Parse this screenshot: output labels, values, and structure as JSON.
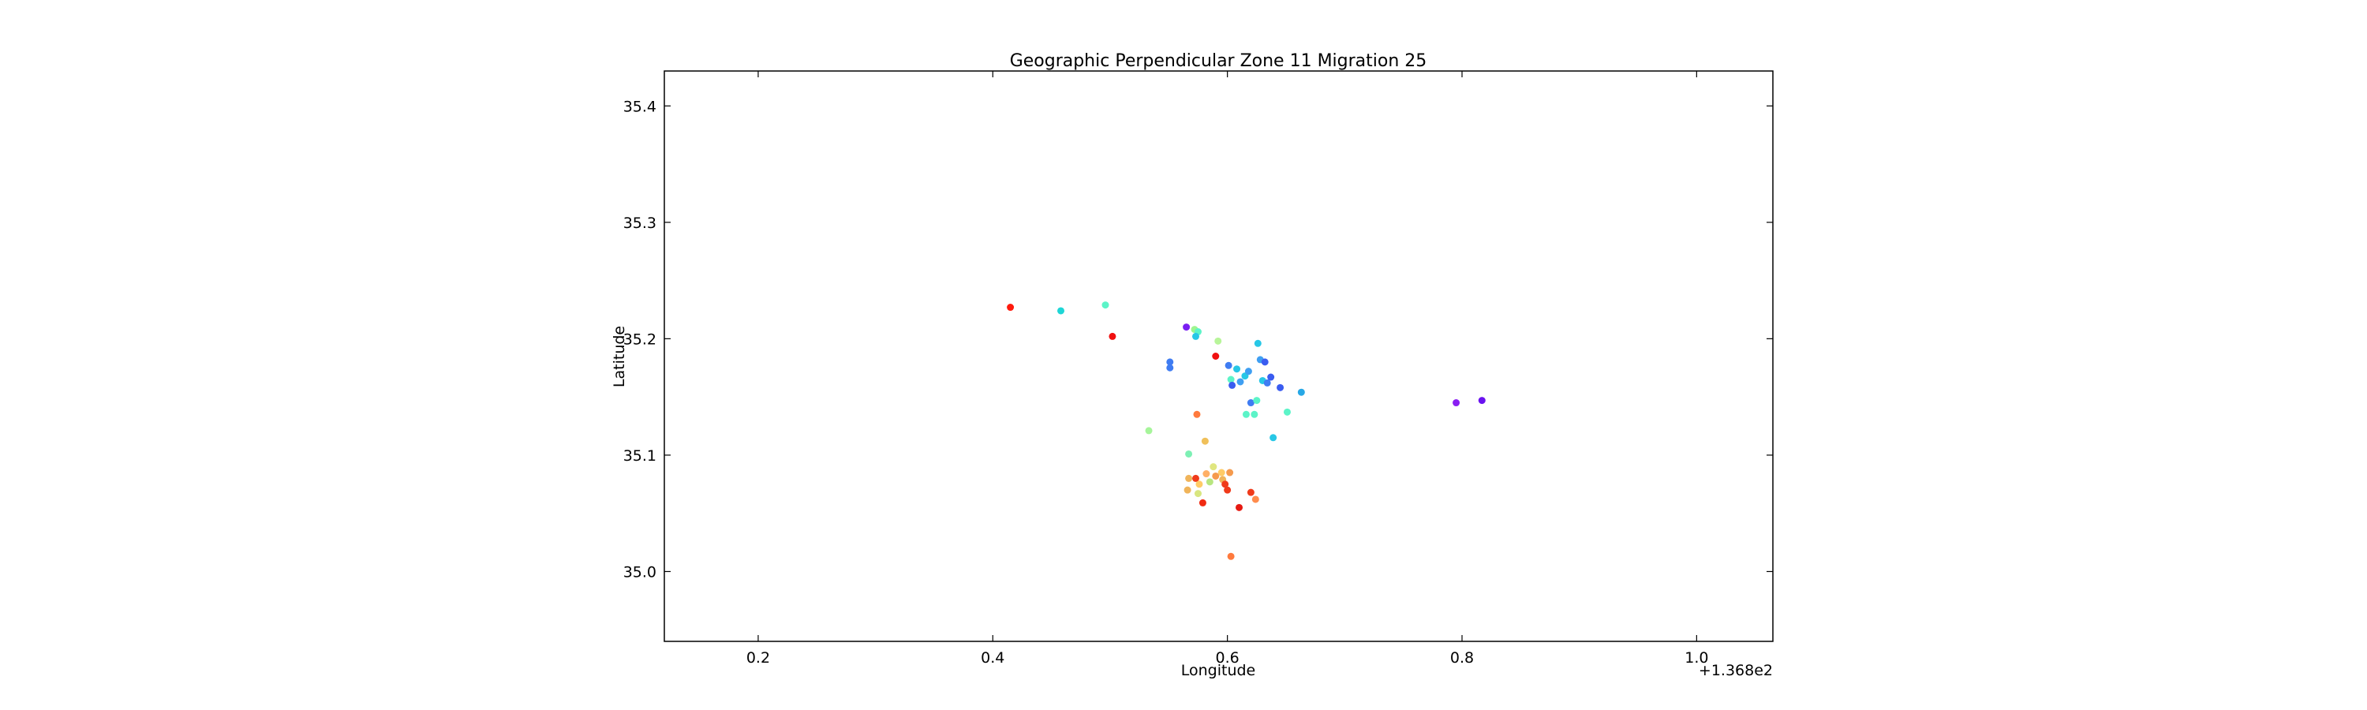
{
  "chart_data": {
    "type": "scatter",
    "title": "Geographic Perpendicular Zone 11 Migration 25",
    "xlabel": "Longitude",
    "ylabel": "Latitude",
    "x_offset_label": "+1.368e2",
    "xlim": [
      0.12,
      1.065
    ],
    "ylim": [
      34.94,
      35.43
    ],
    "xticks": [
      0.2,
      0.4,
      0.6,
      0.8,
      1.0
    ],
    "xtick_labels": [
      "0.2",
      "0.4",
      "0.6",
      "0.8",
      "1.0"
    ],
    "yticks": [
      35.0,
      35.1,
      35.2,
      35.3,
      35.4
    ],
    "ytick_labels": [
      "35.0",
      "35.1",
      "35.2",
      "35.3",
      "35.4"
    ],
    "grid": false,
    "colormap": "rainbow",
    "points": [
      {
        "x": 0.415,
        "y": 35.227,
        "color": "#ff1a0d"
      },
      {
        "x": 0.458,
        "y": 35.224,
        "color": "#1ed6d6"
      },
      {
        "x": 0.496,
        "y": 35.229,
        "color": "#5cf4c8"
      },
      {
        "x": 0.502,
        "y": 35.202,
        "color": "#f01010"
      },
      {
        "x": 0.533,
        "y": 35.121,
        "color": "#a6f59a"
      },
      {
        "x": 0.551,
        "y": 35.18,
        "color": "#3f7cf2"
      },
      {
        "x": 0.551,
        "y": 35.175,
        "color": "#3f7cf2"
      },
      {
        "x": 0.565,
        "y": 35.21,
        "color": "#7a1ef2"
      },
      {
        "x": 0.567,
        "y": 35.101,
        "color": "#7df0b4"
      },
      {
        "x": 0.567,
        "y": 35.08,
        "color": "#f0b45a"
      },
      {
        "x": 0.566,
        "y": 35.07,
        "color": "#f0b45a"
      },
      {
        "x": 0.572,
        "y": 35.208,
        "color": "#9ef58f"
      },
      {
        "x": 0.575,
        "y": 35.206,
        "color": "#5cf4c8"
      },
      {
        "x": 0.573,
        "y": 35.202,
        "color": "#27c7e6"
      },
      {
        "x": 0.574,
        "y": 35.135,
        "color": "#ff7a3d"
      },
      {
        "x": 0.573,
        "y": 35.08,
        "color": "#f03a1a"
      },
      {
        "x": 0.576,
        "y": 35.075,
        "color": "#ffcb66"
      },
      {
        "x": 0.575,
        "y": 35.067,
        "color": "#d8e680"
      },
      {
        "x": 0.579,
        "y": 35.059,
        "color": "#f02a12"
      },
      {
        "x": 0.581,
        "y": 35.112,
        "color": "#f0c05a"
      },
      {
        "x": 0.582,
        "y": 35.084,
        "color": "#ffb066"
      },
      {
        "x": 0.585,
        "y": 35.077,
        "color": "#b8e680"
      },
      {
        "x": 0.588,
        "y": 35.09,
        "color": "#e0e680"
      },
      {
        "x": 0.59,
        "y": 35.082,
        "color": "#f59a4d"
      },
      {
        "x": 0.59,
        "y": 35.185,
        "color": "#f01010"
      },
      {
        "x": 0.592,
        "y": 35.198,
        "color": "#b8f59a"
      },
      {
        "x": 0.595,
        "y": 35.085,
        "color": "#ffcb66"
      },
      {
        "x": 0.596,
        "y": 35.079,
        "color": "#f0b45a"
      },
      {
        "x": 0.598,
        "y": 35.075,
        "color": "#f03a1a"
      },
      {
        "x": 0.6,
        "y": 35.07,
        "color": "#f03a1a"
      },
      {
        "x": 0.602,
        "y": 35.085,
        "color": "#f59a4d"
      },
      {
        "x": 0.601,
        "y": 35.177,
        "color": "#3f7cf2"
      },
      {
        "x": 0.603,
        "y": 35.165,
        "color": "#5cf4c8"
      },
      {
        "x": 0.604,
        "y": 35.16,
        "color": "#3a5cf0"
      },
      {
        "x": 0.603,
        "y": 35.013,
        "color": "#ff7a3d"
      },
      {
        "x": 0.608,
        "y": 35.174,
        "color": "#27c7e6"
      },
      {
        "x": 0.61,
        "y": 35.055,
        "color": "#e61a12"
      },
      {
        "x": 0.611,
        "y": 35.163,
        "color": "#3f9ff2"
      },
      {
        "x": 0.615,
        "y": 35.168,
        "color": "#27c7e6"
      },
      {
        "x": 0.616,
        "y": 35.135,
        "color": "#5cf4c8"
      },
      {
        "x": 0.618,
        "y": 35.172,
        "color": "#3f9ff2"
      },
      {
        "x": 0.62,
        "y": 35.068,
        "color": "#f03a1a"
      },
      {
        "x": 0.62,
        "y": 35.145,
        "color": "#3f7cf2"
      },
      {
        "x": 0.623,
        "y": 35.135,
        "color": "#5cf4c8"
      },
      {
        "x": 0.624,
        "y": 35.062,
        "color": "#ff8c4d"
      },
      {
        "x": 0.625,
        "y": 35.147,
        "color": "#5cf4c8"
      },
      {
        "x": 0.626,
        "y": 35.196,
        "color": "#27c7e6"
      },
      {
        "x": 0.628,
        "y": 35.182,
        "color": "#3f9ff2"
      },
      {
        "x": 0.632,
        "y": 35.18,
        "color": "#3a5cf0"
      },
      {
        "x": 0.63,
        "y": 35.164,
        "color": "#27c7e6"
      },
      {
        "x": 0.634,
        "y": 35.162,
        "color": "#3f7cf2"
      },
      {
        "x": 0.637,
        "y": 35.167,
        "color": "#3a5cf0"
      },
      {
        "x": 0.639,
        "y": 35.115,
        "color": "#27c7e6"
      },
      {
        "x": 0.645,
        "y": 35.158,
        "color": "#3a5cf0"
      },
      {
        "x": 0.651,
        "y": 35.137,
        "color": "#5cf4c8"
      },
      {
        "x": 0.663,
        "y": 35.154,
        "color": "#27a8e6"
      },
      {
        "x": 0.795,
        "y": 35.145,
        "color": "#8a1ef2"
      },
      {
        "x": 0.817,
        "y": 35.147,
        "color": "#6a12f0"
      }
    ]
  }
}
